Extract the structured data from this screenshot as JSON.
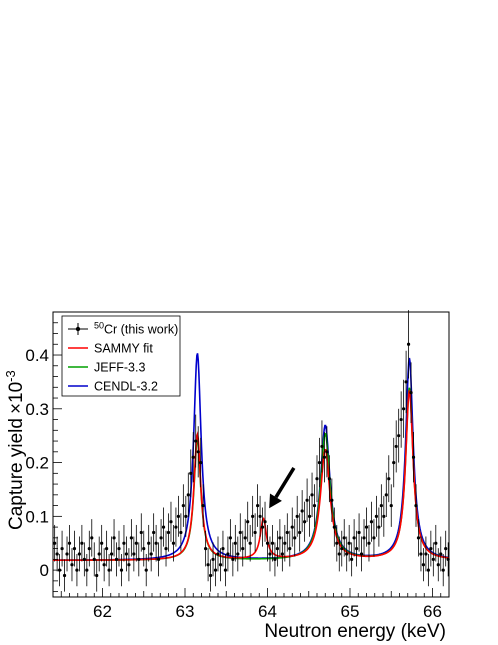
{
  "chart_data": {
    "type": "scatter",
    "title": "",
    "xlabel": "Neutron energy (keV)",
    "ylabel": "Capture yield",
    "ylabel_exponent": "×10",
    "ylabel_exponent_power": "-3",
    "xlim": [
      61.4,
      66.2
    ],
    "ylim": [
      -0.05,
      0.48
    ],
    "x_ticks": [
      62,
      63,
      64,
      65,
      66
    ],
    "x_tick_labels": [
      "62",
      "63",
      "64",
      "65",
      "66"
    ],
    "y_ticks": [
      0,
      0.1,
      0.2,
      0.3,
      0.4
    ],
    "y_tick_labels": [
      "0",
      "0.1",
      "0.2",
      "0.3",
      "0.4"
    ],
    "grid": false,
    "legend_position": "top-left",
    "legend": [
      {
        "label_sup": "50",
        "label": "Cr (this work)",
        "color": "#000000",
        "style": "points"
      },
      {
        "label": "SAMMY fit",
        "color": "#ff0000",
        "style": "line"
      },
      {
        "label": "JEFF-3.3",
        "color": "#00a000",
        "style": "line"
      },
      {
        "label": "CENDL-3.2",
        "color": "#0000cc",
        "style": "line"
      }
    ],
    "resonances": [
      {
        "series": "SAMMY fit",
        "peaks": [
          {
            "e": 63.15,
            "h": 0.235,
            "w": 0.05
          },
          {
            "e": 63.95,
            "h": 0.075,
            "w": 0.045
          },
          {
            "e": 64.7,
            "h": 0.205,
            "w": 0.07
          },
          {
            "e": 65.72,
            "h": 0.315,
            "w": 0.055
          }
        ],
        "baseline": 0.018
      },
      {
        "series": "JEFF-3.3",
        "peaks": [
          {
            "e": 63.15,
            "h": 0.225,
            "w": 0.05
          },
          {
            "e": 64.7,
            "h": 0.235,
            "w": 0.07
          },
          {
            "e": 65.72,
            "h": 0.32,
            "w": 0.055
          }
        ],
        "baseline": 0.018
      },
      {
        "series": "CENDL-3.2",
        "peaks": [
          {
            "e": 63.15,
            "h": 0.385,
            "w": 0.055
          },
          {
            "e": 64.7,
            "h": 0.25,
            "w": 0.07
          },
          {
            "e": 65.72,
            "h": 0.375,
            "w": 0.055
          }
        ],
        "baseline": 0.018
      }
    ],
    "points": [
      [
        61.42,
        0.05
      ],
      [
        61.45,
        0.03
      ],
      [
        61.48,
        0.0
      ],
      [
        61.51,
        0.04
      ],
      [
        61.54,
        -0.01
      ],
      [
        61.57,
        0.03
      ],
      [
        61.6,
        0.05
      ],
      [
        61.63,
        0.01
      ],
      [
        61.66,
        0.04
      ],
      [
        61.69,
        0.0
      ],
      [
        61.72,
        0.03
      ],
      [
        61.75,
        0.05
      ],
      [
        61.78,
        0.02
      ],
      [
        61.81,
        0.0
      ],
      [
        61.84,
        0.04
      ],
      [
        61.87,
        0.06
      ],
      [
        61.9,
        0.02
      ],
      [
        61.93,
        -0.01
      ],
      [
        61.96,
        0.03
      ],
      [
        61.99,
        0.05
      ],
      [
        62.02,
        0.01
      ],
      [
        62.05,
        0.04
      ],
      [
        62.08,
        0.0
      ],
      [
        62.11,
        0.03
      ],
      [
        62.14,
        0.06
      ],
      [
        62.17,
        0.02
      ],
      [
        62.2,
        0.04
      ],
      [
        62.23,
        0.0
      ],
      [
        62.26,
        0.05
      ],
      [
        62.29,
        0.03
      ],
      [
        62.32,
        0.01
      ],
      [
        62.35,
        0.06
      ],
      [
        62.38,
        0.03
      ],
      [
        62.41,
        0.05
      ],
      [
        62.44,
        0.02
      ],
      [
        62.47,
        0.07
      ],
      [
        62.5,
        0.04
      ],
      [
        62.53,
        0.0
      ],
      [
        62.56,
        0.05
      ],
      [
        62.59,
        0.03
      ],
      [
        62.62,
        0.07
      ],
      [
        62.65,
        0.05
      ],
      [
        62.68,
        0.02
      ],
      [
        62.71,
        0.06
      ],
      [
        62.74,
        0.08
      ],
      [
        62.77,
        0.04
      ],
      [
        62.8,
        0.07
      ],
      [
        62.83,
        0.09
      ],
      [
        62.86,
        0.05
      ],
      [
        62.89,
        0.08
      ],
      [
        62.92,
        0.1
      ],
      [
        62.95,
        0.07
      ],
      [
        62.98,
        0.12
      ],
      [
        63.01,
        0.1
      ],
      [
        63.04,
        0.14
      ],
      [
        63.07,
        0.18
      ],
      [
        63.1,
        0.21
      ],
      [
        63.13,
        0.24
      ],
      [
        63.16,
        0.22
      ],
      [
        63.19,
        0.2
      ],
      [
        63.22,
        0.12
      ],
      [
        63.25,
        0.04
      ],
      [
        63.28,
        0.01
      ],
      [
        63.31,
        -0.01
      ],
      [
        63.34,
        0.02
      ],
      [
        63.37,
        0.0
      ],
      [
        63.4,
        0.03
      ],
      [
        63.43,
        0.01
      ],
      [
        63.46,
        0.04
      ],
      [
        63.49,
        0.0
      ],
      [
        63.52,
        0.03
      ],
      [
        63.55,
        0.06
      ],
      [
        63.58,
        0.02
      ],
      [
        63.61,
        0.05
      ],
      [
        63.64,
        0.03
      ],
      [
        63.67,
        0.07
      ],
      [
        63.7,
        0.04
      ],
      [
        63.73,
        0.06
      ],
      [
        63.76,
        0.09
      ],
      [
        63.79,
        0.05
      ],
      [
        63.82,
        0.1
      ],
      [
        63.85,
        0.07
      ],
      [
        63.88,
        0.12
      ],
      [
        63.91,
        0.1
      ],
      [
        63.94,
        0.08
      ],
      [
        63.97,
        0.09
      ],
      [
        64.0,
        0.05
      ],
      [
        64.03,
        0.03
      ],
      [
        64.06,
        0.05
      ],
      [
        64.09,
        0.02
      ],
      [
        64.12,
        0.04
      ],
      [
        64.15,
        0.06
      ],
      [
        64.18,
        0.03
      ],
      [
        64.21,
        0.05
      ],
      [
        64.24,
        0.07
      ],
      [
        64.27,
        0.04
      ],
      [
        64.3,
        0.08
      ],
      [
        64.33,
        0.06
      ],
      [
        64.36,
        0.1
      ],
      [
        64.39,
        0.07
      ],
      [
        64.42,
        0.11
      ],
      [
        64.45,
        0.09
      ],
      [
        64.48,
        0.13
      ],
      [
        64.51,
        0.1
      ],
      [
        64.54,
        0.14
      ],
      [
        64.57,
        0.12
      ],
      [
        64.6,
        0.17
      ],
      [
        64.63,
        0.2
      ],
      [
        64.66,
        0.23
      ],
      [
        64.69,
        0.21
      ],
      [
        64.72,
        0.22
      ],
      [
        64.75,
        0.17
      ],
      [
        64.78,
        0.13
      ],
      [
        64.81,
        0.08
      ],
      [
        64.84,
        0.05
      ],
      [
        64.87,
        0.03
      ],
      [
        64.9,
        0.04
      ],
      [
        64.93,
        0.06
      ],
      [
        64.96,
        0.03
      ],
      [
        64.99,
        0.05
      ],
      [
        65.02,
        0.02
      ],
      [
        65.05,
        0.06
      ],
      [
        65.08,
        0.04
      ],
      [
        65.11,
        0.07
      ],
      [
        65.14,
        0.03
      ],
      [
        65.17,
        0.06
      ],
      [
        65.2,
        0.08
      ],
      [
        65.23,
        0.05
      ],
      [
        65.26,
        0.09
      ],
      [
        65.29,
        0.06
      ],
      [
        65.32,
        0.1
      ],
      [
        65.35,
        0.08
      ],
      [
        65.38,
        0.12
      ],
      [
        65.41,
        0.1
      ],
      [
        65.44,
        0.14
      ],
      [
        65.47,
        0.17
      ],
      [
        65.5,
        0.12
      ],
      [
        65.53,
        0.2
      ],
      [
        65.56,
        0.23
      ],
      [
        65.59,
        0.25
      ],
      [
        65.62,
        0.28
      ],
      [
        65.65,
        0.3
      ],
      [
        65.68,
        0.35
      ],
      [
        65.71,
        0.42
      ],
      [
        65.74,
        0.33
      ],
      [
        65.77,
        0.21
      ],
      [
        65.8,
        0.12
      ],
      [
        65.83,
        0.06
      ],
      [
        65.86,
        0.03
      ],
      [
        65.89,
        0.01
      ],
      [
        65.92,
        0.03
      ],
      [
        65.95,
        0.0
      ],
      [
        65.98,
        0.04
      ],
      [
        66.01,
        0.02
      ],
      [
        66.04,
        0.05
      ],
      [
        66.07,
        0.01
      ],
      [
        66.1,
        0.03
      ],
      [
        66.13,
        0.0
      ],
      [
        66.16,
        0.04
      ],
      [
        66.19,
        0.02
      ]
    ],
    "annotation": {
      "type": "arrow",
      "x": 64.02,
      "y": 0.115,
      "from_x": 64.32,
      "from_y": 0.19,
      "color": "#000000"
    }
  }
}
